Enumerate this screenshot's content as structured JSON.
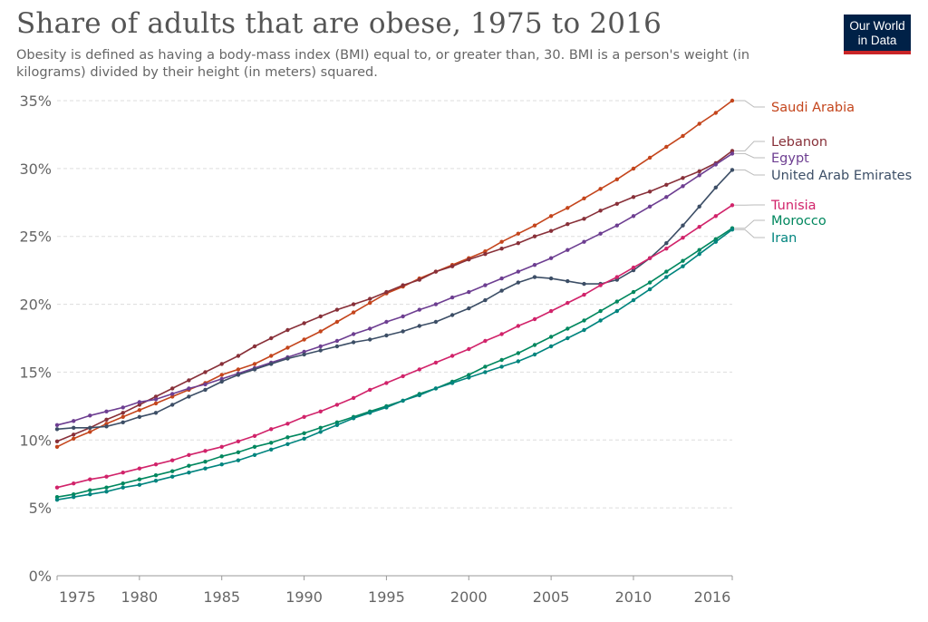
{
  "header": {
    "title": "Share of adults that are obese, 1975 to 2016",
    "subtitle": "Obesity is defined as having a body-mass index (BMI) equal to, or greater than, 30. BMI is a person's weight (in kilograms) divided by their height (in meters) squared."
  },
  "logo": {
    "line1": "Our World",
    "line2": "in Data",
    "bg_color": "#002147",
    "accent_color": "#c92527"
  },
  "chart_data": {
    "type": "line",
    "title": "Share of adults that are obese, 1975 to 2016",
    "subtitle": "Obesity is defined as having a body-mass index (BMI) equal to, or greater than, 30. BMI is a person's weight (in kilograms) divided by their height (in meters) squared.",
    "xlabel": "",
    "ylabel": "",
    "xlim": [
      1975,
      2016
    ],
    "ylim": [
      0,
      35
    ],
    "grid": "horizontal dashed",
    "legend": "right (direct labels)",
    "x_ticks": [
      {
        "value": 1975,
        "label": "1975"
      },
      {
        "value": 1980,
        "label": "1980"
      },
      {
        "value": 1985,
        "label": "1985"
      },
      {
        "value": 1990,
        "label": "1990"
      },
      {
        "value": 1995,
        "label": "1995"
      },
      {
        "value": 2000,
        "label": "2000"
      },
      {
        "value": 2005,
        "label": "2005"
      },
      {
        "value": 2010,
        "label": "2010"
      },
      {
        "value": 2016,
        "label": "2016"
      }
    ],
    "y_ticks": [
      {
        "value": 0,
        "label": "0%"
      },
      {
        "value": 5,
        "label": "5%"
      },
      {
        "value": 10,
        "label": "10%"
      },
      {
        "value": 15,
        "label": "15%"
      },
      {
        "value": 20,
        "label": "20%"
      },
      {
        "value": 25,
        "label": "25%"
      },
      {
        "value": 30,
        "label": "30%"
      },
      {
        "value": 35,
        "label": "35%"
      }
    ],
    "x": [
      1975,
      1976,
      1977,
      1978,
      1979,
      1980,
      1981,
      1982,
      1983,
      1984,
      1985,
      1986,
      1987,
      1988,
      1989,
      1990,
      1991,
      1992,
      1993,
      1994,
      1995,
      1996,
      1997,
      1998,
      1999,
      2000,
      2001,
      2002,
      2003,
      2004,
      2005,
      2006,
      2007,
      2008,
      2009,
      2010,
      2011,
      2012,
      2013,
      2014,
      2015,
      2016
    ],
    "series": [
      {
        "name": "Saudi Arabia",
        "color": "#c4451c",
        "values": [
          9.5,
          10.1,
          10.6,
          11.2,
          11.7,
          12.2,
          12.7,
          13.2,
          13.7,
          14.2,
          14.8,
          15.2,
          15.6,
          16.2,
          16.8,
          17.4,
          18.0,
          18.7,
          19.4,
          20.1,
          20.8,
          21.3,
          21.9,
          22.4,
          22.9,
          23.4,
          23.9,
          24.6,
          25.2,
          25.8,
          26.5,
          27.1,
          27.8,
          28.5,
          29.2,
          30.0,
          30.8,
          31.6,
          32.4,
          33.3,
          34.1,
          35.0
        ]
      },
      {
        "name": "Lebanon",
        "color": "#883039",
        "values": [
          9.9,
          10.4,
          10.9,
          11.5,
          12.0,
          12.6,
          13.2,
          13.8,
          14.4,
          15.0,
          15.6,
          16.2,
          16.9,
          17.5,
          18.1,
          18.6,
          19.1,
          19.6,
          20.0,
          20.4,
          20.9,
          21.4,
          21.8,
          22.4,
          22.8,
          23.3,
          23.7,
          24.1,
          24.5,
          25.0,
          25.4,
          25.9,
          26.3,
          26.9,
          27.4,
          27.9,
          28.3,
          28.8,
          29.3,
          29.8,
          30.4,
          31.3
        ]
      },
      {
        "name": "Egypt",
        "color": "#6d3e91",
        "values": [
          11.1,
          11.4,
          11.8,
          12.1,
          12.4,
          12.8,
          13.0,
          13.4,
          13.8,
          14.1,
          14.5,
          14.9,
          15.3,
          15.7,
          16.1,
          16.5,
          16.9,
          17.3,
          17.8,
          18.2,
          18.7,
          19.1,
          19.6,
          20.0,
          20.5,
          20.9,
          21.4,
          21.9,
          22.4,
          22.9,
          23.4,
          24.0,
          24.6,
          25.2,
          25.8,
          26.5,
          27.2,
          27.9,
          28.7,
          29.5,
          30.3,
          31.1
        ]
      },
      {
        "name": "United Arab Emirates",
        "color": "#3c4e66",
        "values": [
          10.8,
          10.9,
          10.9,
          11.0,
          11.3,
          11.7,
          12.0,
          12.6,
          13.2,
          13.7,
          14.3,
          14.8,
          15.2,
          15.6,
          16.0,
          16.3,
          16.6,
          16.9,
          17.2,
          17.4,
          17.7,
          18.0,
          18.4,
          18.7,
          19.2,
          19.7,
          20.3,
          21.0,
          21.6,
          22.0,
          21.9,
          21.7,
          21.5,
          21.5,
          21.8,
          22.5,
          23.4,
          24.5,
          25.8,
          27.2,
          28.6,
          29.9
        ]
      },
      {
        "name": "Tunisia",
        "color": "#d1236a",
        "values": [
          6.5,
          6.8,
          7.1,
          7.3,
          7.6,
          7.9,
          8.2,
          8.5,
          8.9,
          9.2,
          9.5,
          9.9,
          10.3,
          10.8,
          11.2,
          11.7,
          12.1,
          12.6,
          13.1,
          13.7,
          14.2,
          14.7,
          15.2,
          15.7,
          16.2,
          16.7,
          17.3,
          17.8,
          18.4,
          18.9,
          19.5,
          20.1,
          20.7,
          21.4,
          22.0,
          22.7,
          23.4,
          24.1,
          24.9,
          25.7,
          26.5,
          27.3
        ]
      },
      {
        "name": "Morocco",
        "color": "#00875e",
        "values": [
          5.8,
          6.0,
          6.3,
          6.5,
          6.8,
          7.1,
          7.4,
          7.7,
          8.1,
          8.4,
          8.8,
          9.1,
          9.5,
          9.8,
          10.2,
          10.5,
          10.9,
          11.3,
          11.7,
          12.1,
          12.5,
          12.9,
          13.4,
          13.8,
          14.3,
          14.8,
          15.4,
          15.9,
          16.4,
          17.0,
          17.6,
          18.2,
          18.8,
          19.5,
          20.2,
          20.9,
          21.6,
          22.4,
          23.2,
          24.0,
          24.8,
          25.6
        ]
      },
      {
        "name": "Iran",
        "color": "#00847e",
        "values": [
          5.6,
          5.8,
          6.0,
          6.2,
          6.5,
          6.7,
          7.0,
          7.3,
          7.6,
          7.9,
          8.2,
          8.5,
          8.9,
          9.3,
          9.7,
          10.1,
          10.6,
          11.1,
          11.6,
          12.0,
          12.4,
          12.9,
          13.3,
          13.8,
          14.2,
          14.6,
          15.0,
          15.4,
          15.8,
          16.3,
          16.9,
          17.5,
          18.1,
          18.8,
          19.5,
          20.3,
          21.1,
          22.0,
          22.8,
          23.7,
          24.6,
          25.5
        ]
      }
    ]
  }
}
